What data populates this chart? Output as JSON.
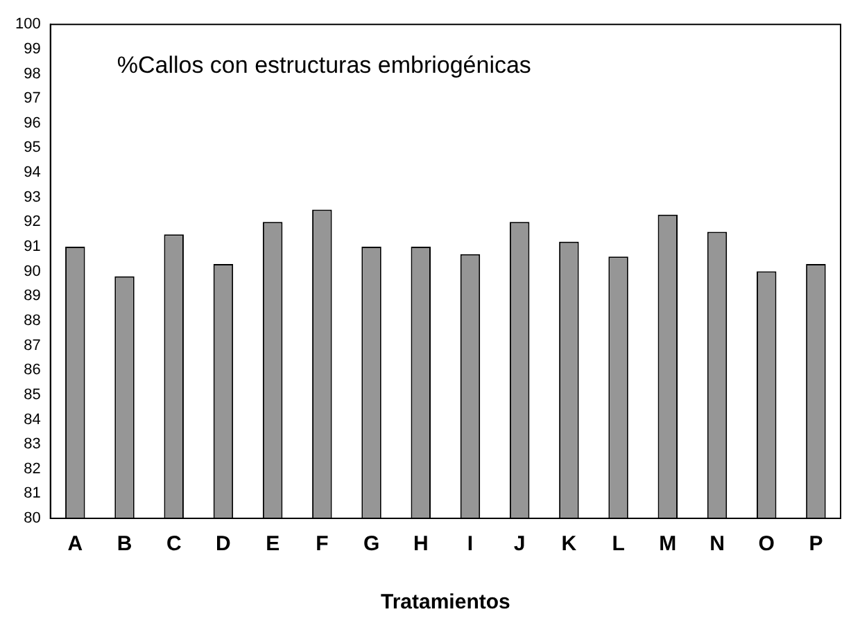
{
  "chart_data": {
    "type": "bar",
    "title": "%Callos con estructuras embriogénicas",
    "xlabel": "Tratamientos",
    "categories": [
      "A",
      "B",
      "C",
      "D",
      "E",
      "F",
      "G",
      "H",
      "I",
      "J",
      "K",
      "L",
      "M",
      "N",
      "O",
      "P"
    ],
    "values": [
      91.0,
      89.8,
      91.5,
      90.3,
      92.0,
      92.5,
      91.0,
      91.0,
      90.7,
      92.0,
      91.2,
      90.6,
      92.3,
      91.6,
      90.0,
      90.3
    ],
    "color": "#969696",
    "ylim": [
      80,
      100
    ],
    "yticks": [
      80,
      81,
      82,
      83,
      84,
      85,
      86,
      87,
      88,
      89,
      90,
      91,
      92,
      93,
      94,
      95,
      96,
      97,
      98,
      99,
      100
    ],
    "grid": false,
    "legend": false
  }
}
